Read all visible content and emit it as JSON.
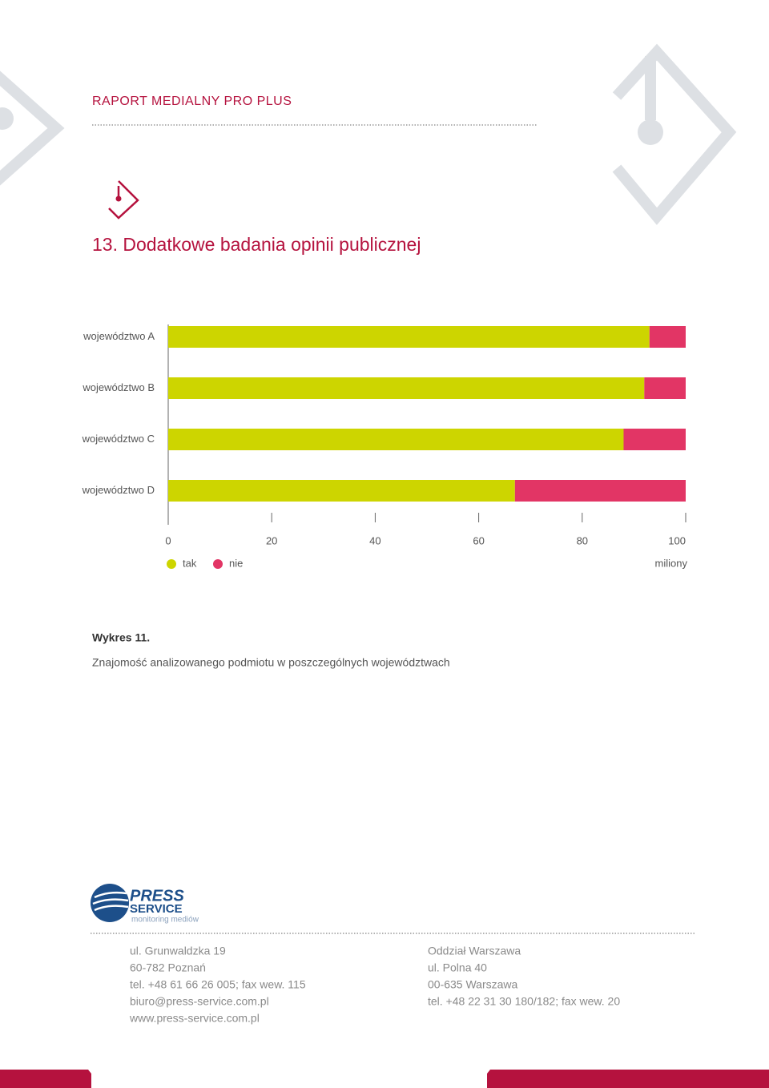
{
  "header": {
    "title": "RAPORT MEDIALNY PRO PLUS"
  },
  "section_title": "13. Dodatkowe badania opinii publicznej",
  "chart_data": {
    "type": "stacked-bar-horizontal",
    "categories": [
      "województwo A",
      "województwo B",
      "województwo C",
      "województwo D"
    ],
    "series": [
      {
        "name": "tak",
        "color": "#cdd500",
        "values": [
          93,
          92,
          88,
          67
        ]
      },
      {
        "name": "nie",
        "color": "#e23565",
        "values": [
          7,
          8,
          12,
          33
        ]
      }
    ],
    "xlim": [
      0,
      100
    ],
    "xticks": [
      0,
      20,
      40,
      60,
      80,
      100
    ],
    "x_label": "miliony",
    "legend": "bottom-left"
  },
  "caption": {
    "label": "Wykres 11.",
    "text": "Znajomość analizowanego podmiotu w poszczególnych województwach"
  },
  "footer": {
    "logo": {
      "line1": "PRESS",
      "line2": "SERVICE",
      "line3": "monitoring mediów"
    },
    "left": [
      "ul. Grunwaldzka 19",
      "60-782 Poznań",
      "tel. +48 61 66 26 005; fax wew. 115",
      "biuro@press-service.com.pl",
      "www.press-service.com.pl"
    ],
    "right": [
      "Oddział Warszawa",
      "ul. Polna 40",
      "00-635 Warszawa",
      "tel. +48 22 31 30 180/182; fax wew. 20"
    ]
  }
}
